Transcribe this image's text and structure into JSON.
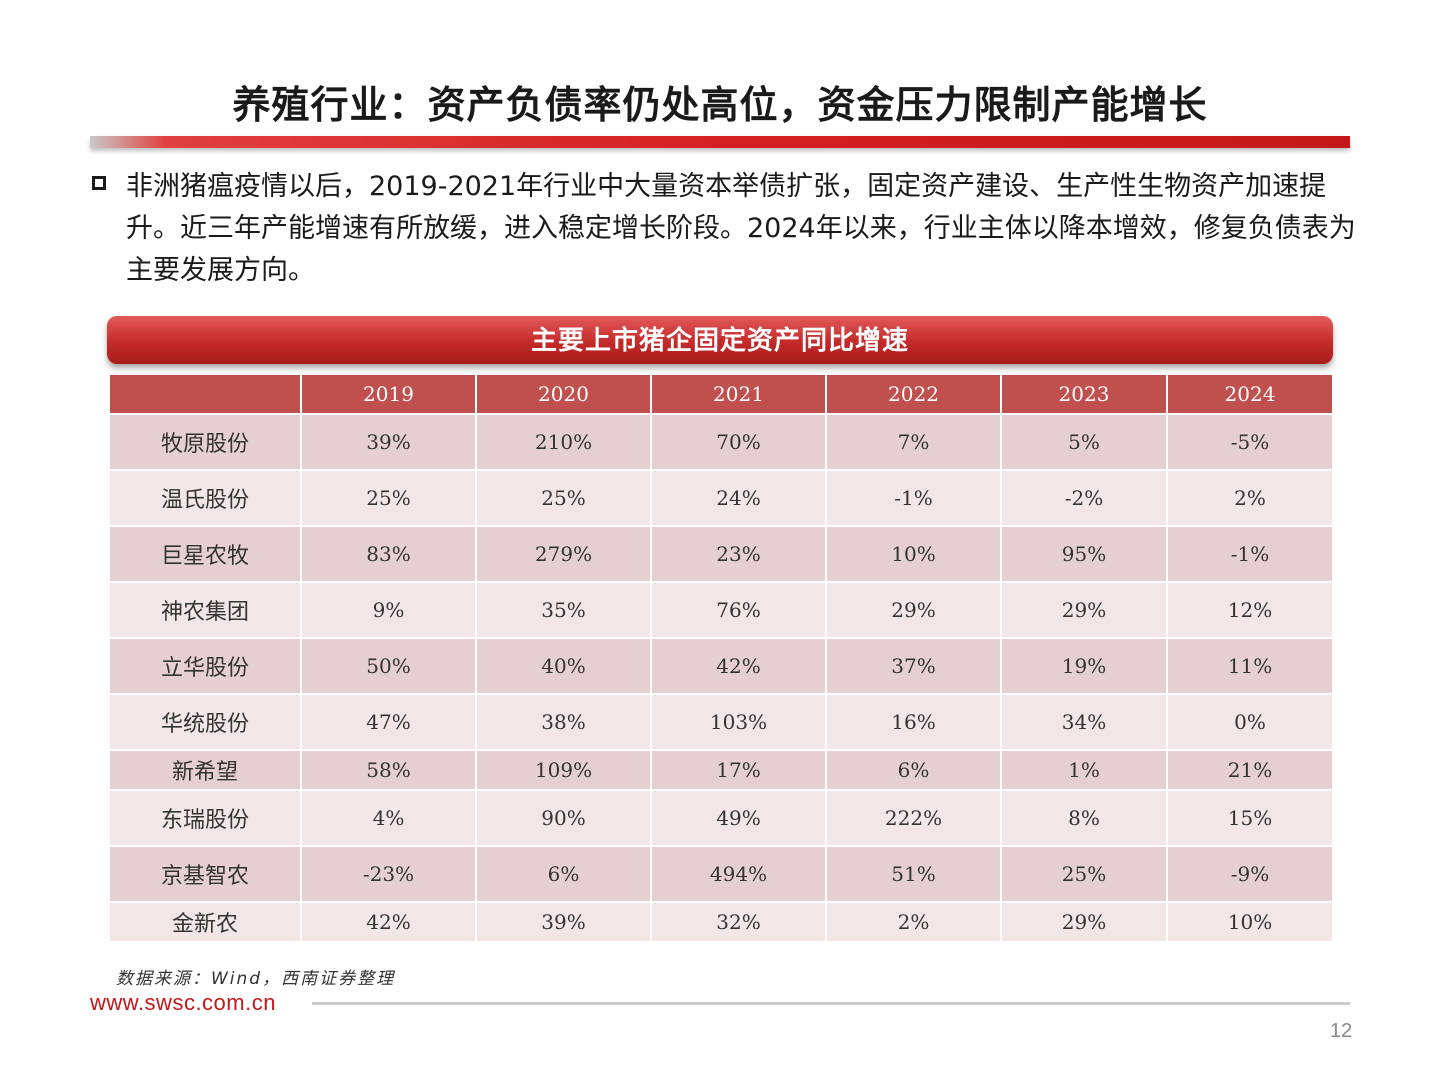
{
  "page": {
    "title": "养殖行业：资产负债率仍处高位，资金压力限制产能增长",
    "bullet_text": "非洲猪瘟疫情以后，2019-2021年行业中大量资本举债扩张，固定资产建设、生产性生物资产加速提升。近三年产能增速有所放缓，进入稳定增长阶段。2024年以来，行业主体以降本增效，修复负债表为主要发展方向。",
    "table_title": "主要上市猪企固定资产同比增速",
    "source": "数据来源：Wind，西南证券整理",
    "footer_url": "www.swsc.com.cn",
    "page_number": "12"
  },
  "table": {
    "columns": [
      "",
      "2019",
      "2020",
      "2021",
      "2022",
      "2023",
      "2024"
    ],
    "rows": [
      {
        "company": "牧原股份",
        "values": [
          "39%",
          "210%",
          "70%",
          "7%",
          "5%",
          "-5%"
        ]
      },
      {
        "company": "温氏股份",
        "values": [
          "25%",
          "25%",
          "24%",
          "-1%",
          "-2%",
          "2%"
        ]
      },
      {
        "company": "巨星农牧",
        "values": [
          "83%",
          "279%",
          "23%",
          "10%",
          "95%",
          "-1%"
        ]
      },
      {
        "company": "神农集团",
        "values": [
          "9%",
          "35%",
          "76%",
          "29%",
          "29%",
          "12%"
        ]
      },
      {
        "company": "立华股份",
        "values": [
          "50%",
          "40%",
          "42%",
          "37%",
          "19%",
          "11%"
        ]
      },
      {
        "company": "华统股份",
        "values": [
          "47%",
          "38%",
          "103%",
          "16%",
          "34%",
          "0%"
        ]
      },
      {
        "company": "新希望",
        "values": [
          "58%",
          "109%",
          "17%",
          "6%",
          "1%",
          "21%"
        ]
      },
      {
        "company": "东瑞股份",
        "values": [
          "4%",
          "90%",
          "49%",
          "222%",
          "8%",
          "15%"
        ]
      },
      {
        "company": "京基智农",
        "values": [
          "-23%",
          "6%",
          "494%",
          "51%",
          "25%",
          "-9%"
        ]
      },
      {
        "company": "金新农",
        "values": [
          "42%",
          "39%",
          "32%",
          "2%",
          "29%",
          "10%"
        ]
      }
    ]
  }
}
